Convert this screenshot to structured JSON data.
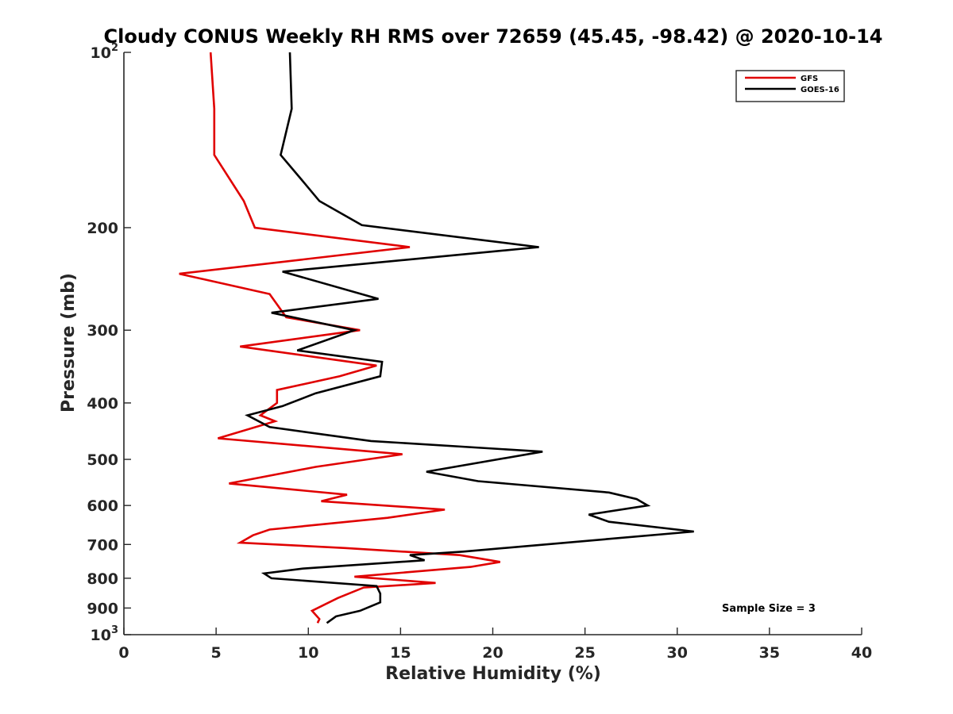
{
  "chart_data": {
    "type": "line",
    "title": "Cloudy CONUS Weekly RH RMS over 72659 (45.45, -98.42) @ 2020-10-14",
    "xlabel": "Relative Humidity (%)",
    "ylabel": "Pressure (mb)",
    "xlim": [
      0,
      40
    ],
    "ylim": [
      100,
      1000
    ],
    "yscale": "log",
    "y_reversed": true,
    "grid": false,
    "legend_position": "top-right",
    "annotation": "Sample Size = 3",
    "x_ticks": [
      0,
      5,
      10,
      15,
      20,
      25,
      30,
      35,
      40
    ],
    "y_ticks": [
      {
        "value": 100,
        "base": "10",
        "exp": "2"
      },
      {
        "value": 200,
        "label": "200"
      },
      {
        "value": 300,
        "label": "300"
      },
      {
        "value": 400,
        "label": "400"
      },
      {
        "value": 500,
        "label": "500"
      },
      {
        "value": 600,
        "label": "600"
      },
      {
        "value": 700,
        "label": "700"
      },
      {
        "value": 800,
        "label": "800"
      },
      {
        "value": 900,
        "label": "900"
      },
      {
        "value": 1000,
        "base": "10",
        "exp": "3"
      }
    ],
    "series": [
      {
        "name": "GFS",
        "color": "#e00000",
        "points": [
          [
            4.7,
            100
          ],
          [
            4.9,
            125
          ],
          [
            4.9,
            150
          ],
          [
            6.5,
            180
          ],
          [
            7.1,
            200
          ],
          [
            15.5,
            216
          ],
          [
            3.0,
            240
          ],
          [
            7.9,
            260
          ],
          [
            8.8,
            285
          ],
          [
            12.8,
            300
          ],
          [
            6.3,
            320
          ],
          [
            13.7,
            345
          ],
          [
            11.7,
            360
          ],
          [
            8.3,
            380
          ],
          [
            8.3,
            400
          ],
          [
            7.4,
            420
          ],
          [
            8.2,
            430
          ],
          [
            5.1,
            460
          ],
          [
            15.1,
            490
          ],
          [
            10.4,
            515
          ],
          [
            5.7,
            550
          ],
          [
            12.1,
            575
          ],
          [
            10.7,
            590
          ],
          [
            17.4,
            610
          ],
          [
            14.3,
            630
          ],
          [
            7.9,
            660
          ],
          [
            7.0,
            675
          ],
          [
            6.3,
            695
          ],
          [
            12.0,
            710
          ],
          [
            18.2,
            730
          ],
          [
            20.4,
            750
          ],
          [
            18.8,
            765
          ],
          [
            12.5,
            795
          ],
          [
            16.9,
            815
          ],
          [
            13.0,
            830
          ],
          [
            11.6,
            865
          ],
          [
            10.2,
            910
          ],
          [
            10.6,
            940
          ],
          [
            10.5,
            955
          ]
        ]
      },
      {
        "name": "GOES-16",
        "color": "#000000",
        "points": [
          [
            9.0,
            100
          ],
          [
            9.1,
            125
          ],
          [
            8.5,
            150
          ],
          [
            9.6,
            165
          ],
          [
            10.6,
            180
          ],
          [
            12.9,
            198
          ],
          [
            22.5,
            216
          ],
          [
            8.6,
            238
          ],
          [
            13.8,
            265
          ],
          [
            8.0,
            280
          ],
          [
            12.5,
            300
          ],
          [
            9.4,
            325
          ],
          [
            14.0,
            340
          ],
          [
            13.9,
            360
          ],
          [
            10.4,
            385
          ],
          [
            8.6,
            405
          ],
          [
            6.7,
            420
          ],
          [
            7.9,
            440
          ],
          [
            13.4,
            465
          ],
          [
            22.7,
            485
          ],
          [
            16.4,
            525
          ],
          [
            19.2,
            545
          ],
          [
            26.3,
            570
          ],
          [
            27.8,
            585
          ],
          [
            28.4,
            600
          ],
          [
            25.2,
            622
          ],
          [
            26.3,
            640
          ],
          [
            30.9,
            665
          ],
          [
            18.4,
            720
          ],
          [
            15.5,
            730
          ],
          [
            16.3,
            745
          ],
          [
            9.7,
            770
          ],
          [
            7.6,
            785
          ],
          [
            8.0,
            800
          ],
          [
            13.7,
            825
          ],
          [
            13.9,
            850
          ],
          [
            13.9,
            880
          ],
          [
            12.8,
            910
          ],
          [
            11.5,
            930
          ],
          [
            11.0,
            955
          ]
        ]
      }
    ]
  }
}
